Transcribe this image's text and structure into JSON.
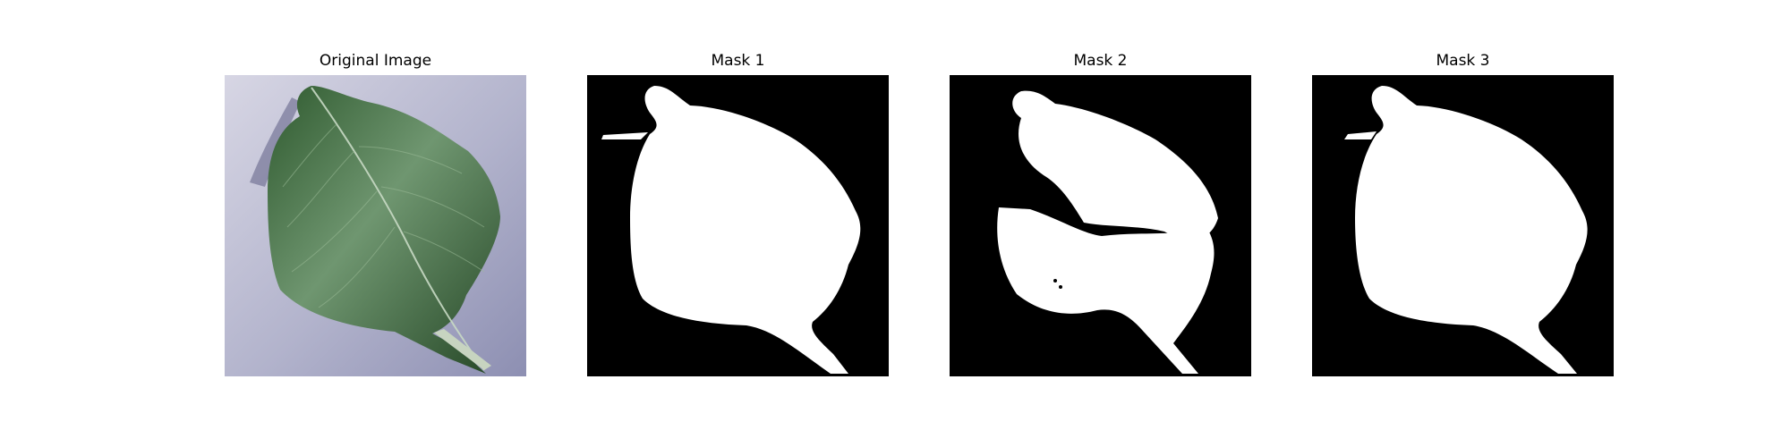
{
  "figure": {
    "panels": [
      {
        "title": "Original Image",
        "kind": "photo",
        "subject": "leaf"
      },
      {
        "title": "Mask 1",
        "kind": "mask"
      },
      {
        "title": "Mask 2",
        "kind": "mask"
      },
      {
        "title": "Mask 3",
        "kind": "mask"
      }
    ]
  },
  "colors": {
    "mask_background": "#000000",
    "mask_foreground": "#ffffff",
    "photo_background": "#b7b8d0",
    "leaf_green": "#3f6a3d",
    "leaf_dark": "#2b4f2c",
    "leaf_light": "#7fa27b"
  }
}
